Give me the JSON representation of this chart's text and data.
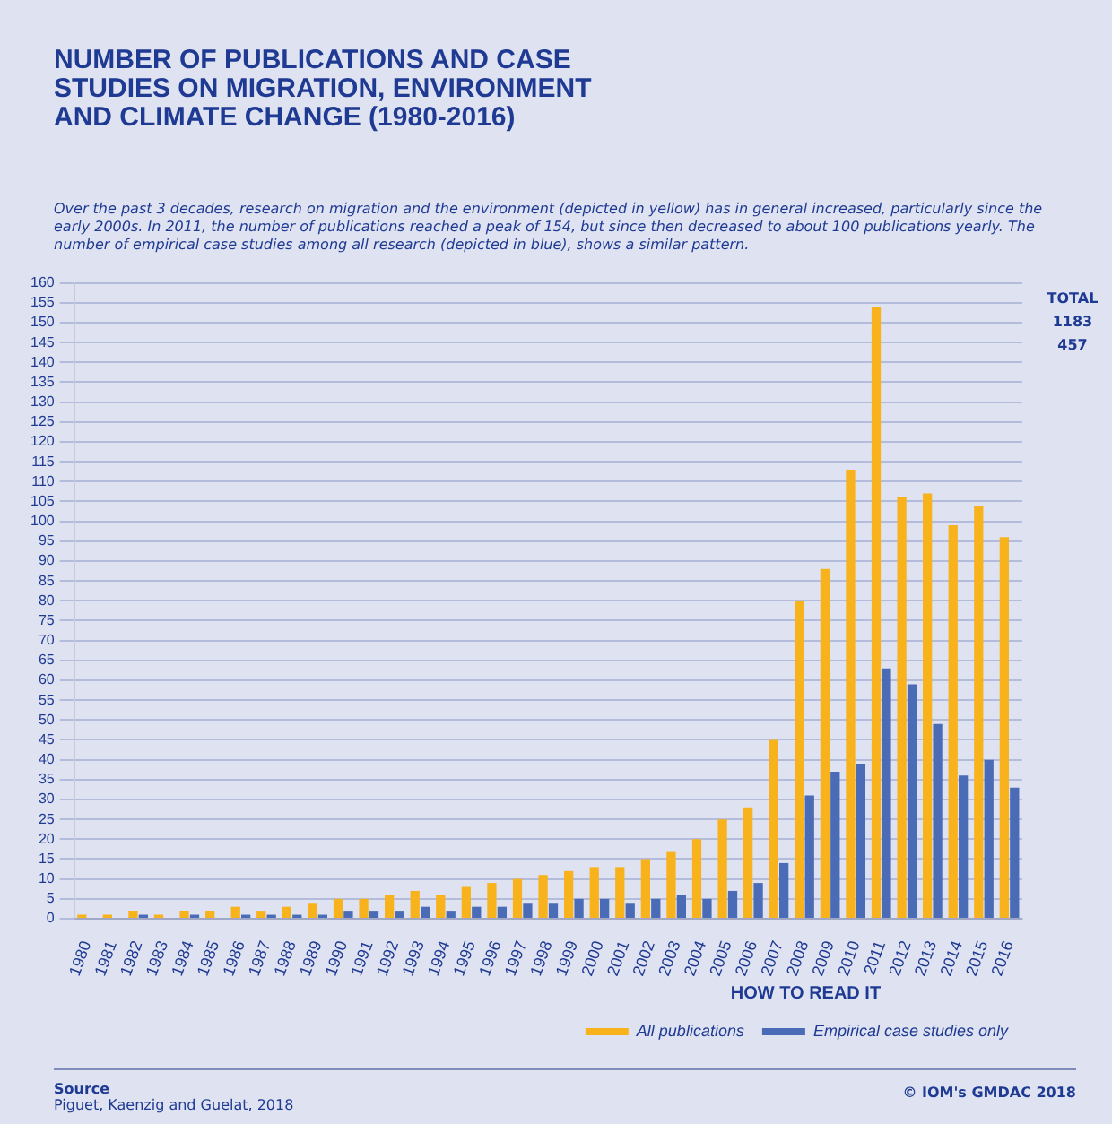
{
  "chart_data": {
    "type": "bar",
    "title": "NUMBER OF PUBLICATIONS AND CASE STUDIES ON MIGRATION, ENVIRONMENT AND CLIMATE CHANGE (1980-2016)",
    "subtitle": "Over the past 3 decades, research on migration and the environment (depicted in yellow) has in general increased, particularly since the early 2000s. In 2011, the number of publications reached a peak of 154, but since then decreased to about 100 publications yearly. The number of empirical case studies among all research (depicted in blue), shows a similar pattern.",
    "categories": [
      "1980",
      "1981",
      "1982",
      "1983",
      "1984",
      "1985",
      "1986",
      "1987",
      "1988",
      "1989",
      "1990",
      "1991",
      "1992",
      "1993",
      "1994",
      "1995",
      "1996",
      "1997",
      "1998",
      "1999",
      "2000",
      "2001",
      "2002",
      "2003",
      "2004",
      "2005",
      "2006",
      "2007",
      "2008",
      "2009",
      "2010",
      "2011",
      "2012",
      "2013",
      "2014",
      "2015",
      "2016"
    ],
    "series": [
      {
        "name": "All publications",
        "color": "#f8b21c",
        "values": [
          1,
          1,
          2,
          1,
          2,
          2,
          3,
          2,
          3,
          4,
          5,
          5,
          6,
          7,
          6,
          8,
          9,
          10,
          11,
          12,
          13,
          13,
          15,
          17,
          20,
          25,
          28,
          45,
          80,
          88,
          113,
          154,
          106,
          107,
          99,
          104,
          96
        ]
      },
      {
        "name": "Empirical case studies only",
        "color": "#4a6bb5",
        "values": [
          0,
          0,
          1,
          0,
          1,
          0,
          1,
          1,
          1,
          1,
          2,
          2,
          2,
          3,
          2,
          3,
          3,
          4,
          4,
          5,
          5,
          4,
          5,
          6,
          5,
          7,
          9,
          14,
          31,
          37,
          39,
          63,
          59,
          49,
          36,
          40,
          33
        ]
      }
    ],
    "ylim": [
      0,
      160
    ],
    "yticks": [
      0,
      5,
      10,
      15,
      20,
      25,
      30,
      35,
      40,
      45,
      50,
      55,
      60,
      65,
      70,
      75,
      80,
      85,
      90,
      95,
      100,
      105,
      110,
      115,
      120,
      125,
      130,
      135,
      140,
      145,
      150,
      155,
      160
    ],
    "grid": "y",
    "legend": "bottom right",
    "legend_title": "HOW TO READ IT",
    "annotations": [
      "TOTAL",
      "1183",
      "457",
      "Source",
      "Piguet, Kaenzig and Guelat, 2018",
      "© IOM's GMDAC 2018"
    ]
  }
}
